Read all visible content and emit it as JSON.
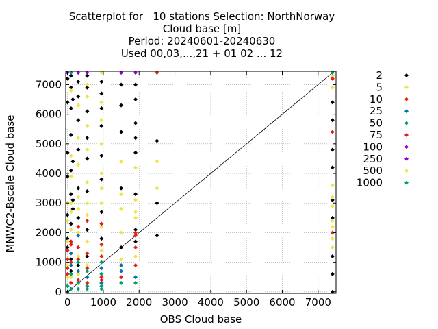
{
  "title_lines": [
    "Scatterplot for   10 stations Selection: NorthNorway",
    "Cloud base [m]",
    "Period: 20240601-20240630",
    "Used 00,03,...,21 + 01 02 ... 12"
  ],
  "chart_data": {
    "type": "scatter",
    "xlabel": "OBS Cloud base",
    "ylabel": "MNWC2-Bscale Cloud base",
    "xlim": [
      -50,
      7500
    ],
    "ylim": [
      -50,
      7450
    ],
    "x_ticks": [
      0,
      1000,
      2000,
      3000,
      4000,
      5000,
      6000,
      7000
    ],
    "y_ticks": [
      0,
      1000,
      2000,
      3000,
      4000,
      5000,
      6000,
      7000
    ],
    "grid": true,
    "diagonal": true,
    "legend_position": "right",
    "legend_title": "",
    "legend": [
      {
        "label": "2",
        "color": "#000000"
      },
      {
        "label": "5",
        "color": "#f0e442"
      },
      {
        "label": "10",
        "color": "#e51e10"
      },
      {
        "label": "25",
        "color": "#0072b2"
      },
      {
        "label": "50",
        "color": "#009e73"
      },
      {
        "label": "75",
        "color": "#e51e10"
      },
      {
        "label": "100",
        "color": "#9400d3"
      },
      {
        "label": "250",
        "color": "#9400d3"
      },
      {
        "label": "500",
        "color": "#f0e442"
      },
      {
        "label": "1000",
        "color": "#009e73"
      }
    ],
    "series": [
      {
        "name": "2",
        "color": "#000000",
        "points": [
          [
            0,
            4700
          ],
          [
            0,
            6400
          ],
          [
            0,
            7200
          ],
          [
            0,
            1500
          ],
          [
            0,
            1800
          ],
          [
            0,
            2600
          ],
          [
            0,
            3900
          ],
          [
            100,
            1700
          ],
          [
            100,
            2300
          ],
          [
            100,
            3300
          ],
          [
            100,
            4100
          ],
          [
            100,
            5300
          ],
          [
            100,
            6200
          ],
          [
            100,
            6900
          ],
          [
            100,
            7300
          ],
          [
            100,
            1100
          ],
          [
            100,
            700
          ],
          [
            150,
            2800
          ],
          [
            150,
            3100
          ],
          [
            150,
            4400
          ],
          [
            150,
            6500
          ],
          [
            300,
            2500
          ],
          [
            300,
            3500
          ],
          [
            300,
            4800
          ],
          [
            300,
            5800
          ],
          [
            300,
            6600
          ],
          [
            300,
            7100
          ],
          [
            300,
            1500
          ],
          [
            300,
            900
          ],
          [
            550,
            2100
          ],
          [
            550,
            3400
          ],
          [
            550,
            4500
          ],
          [
            550,
            5200
          ],
          [
            550,
            6100
          ],
          [
            550,
            6900
          ],
          [
            550,
            7300
          ],
          [
            550,
            1200
          ],
          [
            950,
            2700
          ],
          [
            950,
            3800
          ],
          [
            950,
            4600
          ],
          [
            950,
            5600
          ],
          [
            950,
            6200
          ],
          [
            950,
            6700
          ],
          [
            950,
            7100
          ],
          [
            950,
            1800
          ],
          [
            950,
            300
          ],
          [
            1500,
            5400
          ],
          [
            1500,
            6300
          ],
          [
            1500,
            7000
          ],
          [
            1500,
            3500
          ],
          [
            1500,
            1500
          ],
          [
            1900,
            4700
          ],
          [
            1900,
            5200
          ],
          [
            1900,
            5700
          ],
          [
            1900,
            6500
          ],
          [
            1900,
            7000
          ],
          [
            1900,
            3300
          ],
          [
            1900,
            2100
          ],
          [
            1900,
            1700
          ],
          [
            2500,
            5100
          ],
          [
            2500,
            3000
          ],
          [
            2500,
            1900
          ],
          [
            7400,
            6400
          ],
          [
            7400,
            5800
          ],
          [
            7400,
            4200
          ],
          [
            7400,
            3100
          ],
          [
            7400,
            2500
          ],
          [
            7400,
            1200
          ],
          [
            7400,
            600
          ],
          [
            7400,
            0
          ],
          [
            7400,
            4800
          ]
        ]
      },
      {
        "name": "5",
        "color": "#f0e442",
        "points": [
          [
            0,
            2400
          ],
          [
            0,
            1700
          ],
          [
            0,
            900
          ],
          [
            0,
            500
          ],
          [
            100,
            2100
          ],
          [
            100,
            3000
          ],
          [
            100,
            3900
          ],
          [
            100,
            4600
          ],
          [
            100,
            1300
          ],
          [
            100,
            500
          ],
          [
            100,
            6800
          ],
          [
            300,
            2000
          ],
          [
            300,
            3200
          ],
          [
            300,
            4300
          ],
          [
            300,
            5200
          ],
          [
            300,
            6300
          ],
          [
            300,
            1200
          ],
          [
            300,
            600
          ],
          [
            550,
            1700
          ],
          [
            550,
            2600
          ],
          [
            550,
            3700
          ],
          [
            550,
            4800
          ],
          [
            550,
            5600
          ],
          [
            550,
            6600
          ],
          [
            550,
            7000
          ],
          [
            550,
            900
          ],
          [
            950,
            2200
          ],
          [
            950,
            3000
          ],
          [
            950,
            4000
          ],
          [
            950,
            5000
          ],
          [
            950,
            5800
          ],
          [
            950,
            6400
          ],
          [
            950,
            7400
          ],
          [
            950,
            1400
          ],
          [
            950,
            600
          ],
          [
            1500,
            4400
          ],
          [
            1500,
            2800
          ],
          [
            1500,
            3300
          ],
          [
            1500,
            1100
          ],
          [
            1900,
            4200
          ],
          [
            1900,
            2500
          ],
          [
            1900,
            3100
          ],
          [
            1900,
            1200
          ],
          [
            1900,
            300
          ],
          [
            1900,
            7400
          ],
          [
            2500,
            4400
          ],
          [
            2500,
            3500
          ],
          [
            7400,
            6900
          ],
          [
            7400,
            3200
          ],
          [
            7400,
            2900
          ],
          [
            7400,
            2200
          ],
          [
            7400,
            1800
          ],
          [
            7400,
            3600
          ],
          [
            7400,
            7300
          ]
        ]
      },
      {
        "name": "10",
        "color": "#e51e10",
        "points": [
          [
            0,
            1400
          ],
          [
            0,
            1100
          ],
          [
            0,
            800
          ],
          [
            100,
            1700
          ],
          [
            100,
            1000
          ],
          [
            100,
            300
          ],
          [
            300,
            2200
          ],
          [
            300,
            1500
          ],
          [
            300,
            1100
          ],
          [
            550,
            1300
          ],
          [
            550,
            2400
          ],
          [
            550,
            800
          ],
          [
            950,
            1200
          ],
          [
            950,
            2300
          ],
          [
            950,
            500
          ],
          [
            1900,
            1900
          ],
          [
            1900,
            900
          ],
          [
            7400,
            5400
          ],
          [
            7400,
            7200
          ],
          [
            7400,
            2000
          ]
        ]
      },
      {
        "name": "25",
        "color": "#0072b2",
        "points": [
          [
            100,
            1300
          ],
          [
            100,
            900
          ],
          [
            300,
            700
          ],
          [
            300,
            1900
          ],
          [
            550,
            500
          ],
          [
            950,
            800
          ],
          [
            950,
            300
          ],
          [
            1500,
            900
          ],
          [
            1500,
            700
          ],
          [
            1900,
            500
          ]
        ]
      },
      {
        "name": "50",
        "color": "#009e73",
        "points": [
          [
            0,
            200
          ],
          [
            100,
            600
          ],
          [
            300,
            1000
          ],
          [
            300,
            300
          ],
          [
            550,
            700
          ],
          [
            550,
            200
          ],
          [
            950,
            1000
          ],
          [
            950,
            600
          ],
          [
            950,
            200
          ],
          [
            1500,
            300
          ],
          [
            1900,
            300
          ],
          [
            7400,
            7400
          ]
        ]
      },
      {
        "name": "75",
        "color": "#e51e10",
        "points": [
          [
            0,
            600
          ],
          [
            100,
            1600
          ],
          [
            300,
            400
          ],
          [
            550,
            300
          ],
          [
            950,
            1600
          ],
          [
            950,
            400
          ],
          [
            1500,
            500
          ],
          [
            1900,
            2000
          ],
          [
            1900,
            1500
          ],
          [
            2500,
            7400
          ],
          [
            7400,
            7200
          ]
        ]
      },
      {
        "name": "100",
        "color": "#9400d3",
        "points": [
          [
            300,
            7400
          ],
          [
            1500,
            7400
          ],
          [
            1900,
            7400
          ]
        ]
      },
      {
        "name": "250",
        "color": "#9400d3",
        "points": [
          [
            0,
            7400
          ],
          [
            550,
            7400
          ]
        ]
      },
      {
        "name": "500",
        "color": "#f0e442",
        "points": [
          [
            0,
            3000
          ],
          [
            100,
            2700
          ],
          [
            300,
            2800
          ],
          [
            550,
            3000
          ],
          [
            950,
            3500
          ],
          [
            1500,
            2000
          ],
          [
            1900,
            2700
          ],
          [
            7400,
            1500
          ],
          [
            7400,
            2400
          ]
        ]
      },
      {
        "name": "1000",
        "color": "#009e73",
        "points": [
          [
            100,
            7400
          ],
          [
            0,
            0
          ],
          [
            100,
            100
          ],
          [
            300,
            100
          ],
          [
            550,
            100
          ],
          [
            950,
            100
          ]
        ]
      }
    ]
  }
}
